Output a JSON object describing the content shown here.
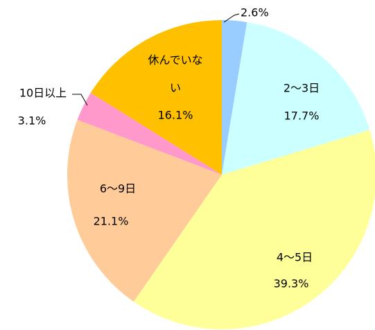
{
  "chart_data": {
    "type": "pie",
    "categories": [
      null,
      "2〜3日",
      "4〜5日",
      "6〜9日",
      "10日以上",
      "休んでいない"
    ],
    "values": [
      2.6,
      17.7,
      39.3,
      21.1,
      3.1,
      16.1
    ],
    "value_labels": [
      "2.6%",
      "17.7%",
      "39.3%",
      "21.1%",
      "3.1%",
      "16.1%"
    ],
    "colors": [
      "#99ccff",
      "#ccffff",
      "#ffff99",
      "#ffcc99",
      "#ff99cc",
      "#ffc000"
    ],
    "start_angle": 0,
    "direction": "clockwise"
  }
}
